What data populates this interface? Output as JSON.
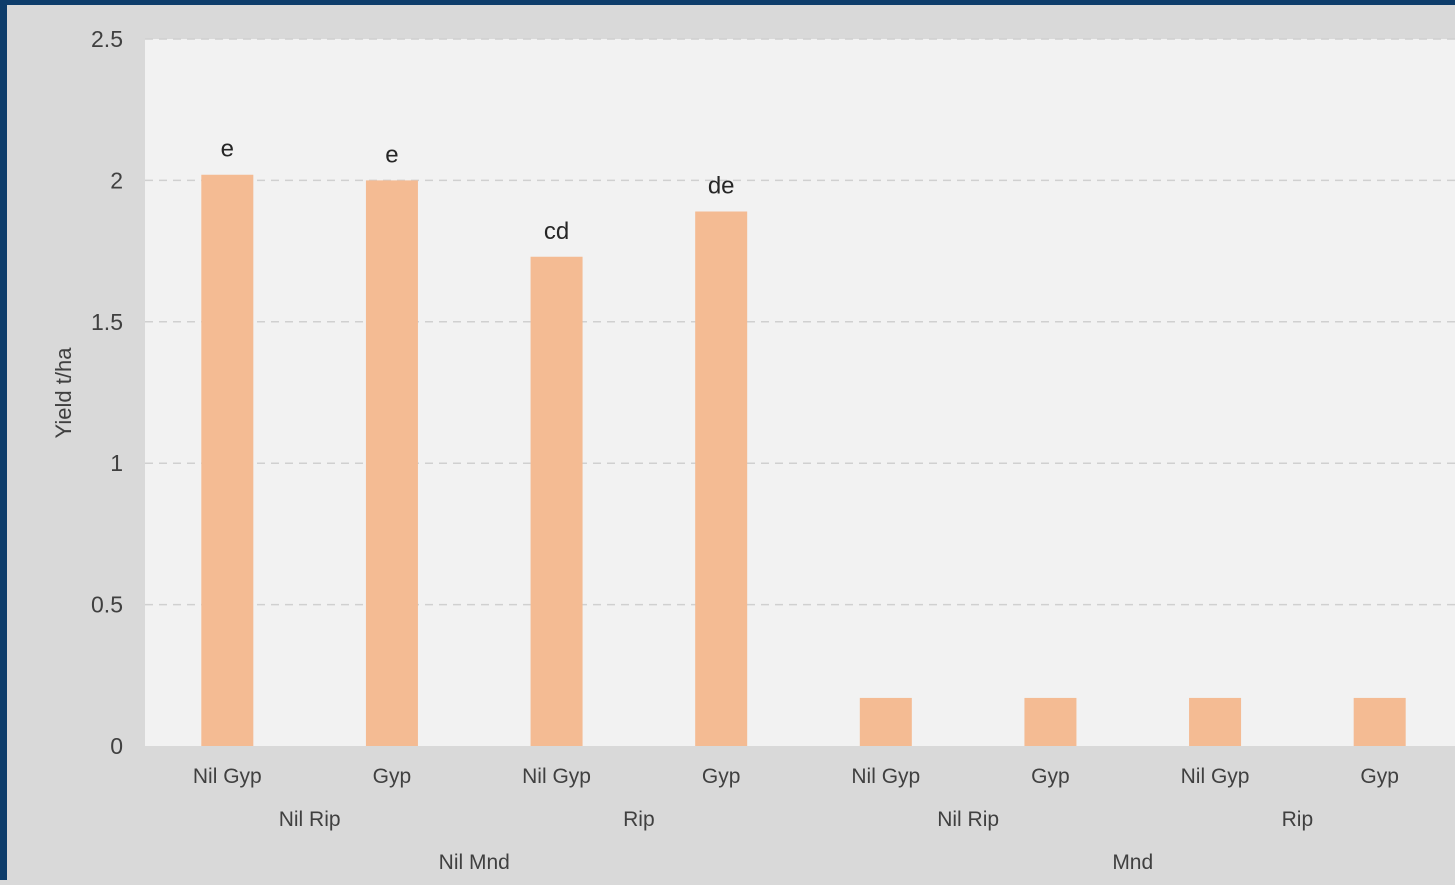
{
  "chart_data": {
    "type": "bar",
    "title": "",
    "ylabel": "Yield t/ha",
    "xlabel": "",
    "ylim": [
      0,
      2.5
    ],
    "yticks": [
      "0",
      "0.5",
      "1",
      "1.5",
      "2",
      "2.5"
    ],
    "grid": true,
    "legend": "none",
    "bar_color": "#f4bb93",
    "categories": [
      "Nil Gyp",
      "Gyp",
      "Nil Gyp",
      "Gyp",
      "Nil Gyp",
      "Gyp",
      "Nil Gyp",
      "Gyp"
    ],
    "rip_groups": [
      {
        "label": "Nil Rip",
        "span": 2
      },
      {
        "label": "Rip",
        "span": 2
      },
      {
        "label": "Nil Rip",
        "span": 2
      },
      {
        "label": "Rip",
        "span": 2
      }
    ],
    "mnd_groups": [
      {
        "label": "Nil Mnd",
        "span": 4
      },
      {
        "label": "Mnd",
        "span": 4
      }
    ],
    "values": [
      2.02,
      2.0,
      1.73,
      1.89,
      0.17,
      0.17,
      0.17,
      0.17
    ],
    "data_labels": [
      "e",
      "e",
      "cd",
      "de",
      "",
      "",
      "",
      ""
    ]
  }
}
